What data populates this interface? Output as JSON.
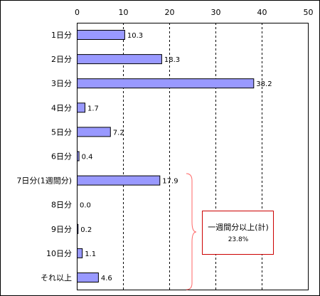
{
  "chart_data": {
    "type": "bar",
    "orientation": "horizontal",
    "categories": [
      "1日分",
      "2日分",
      "3日分",
      "4日分",
      "5日分",
      "6日分",
      "7日分(1週間分)",
      "8日分",
      "9日分",
      "10日分",
      "それ以上"
    ],
    "values": [
      10.3,
      18.3,
      38.2,
      1.7,
      7.2,
      0.4,
      17.9,
      0.0,
      0.2,
      1.1,
      4.6
    ],
    "value_labels": [
      "10.3",
      "18.3",
      "38.2",
      "1.7",
      "7.2",
      "0.4",
      "17.9",
      "0.0",
      "0.2",
      "1.1",
      "4.6"
    ],
    "xlim": [
      0,
      50
    ],
    "xticks": [
      "0",
      "10",
      "20",
      "30",
      "40",
      "50"
    ],
    "grid": true,
    "colors": {
      "bar": "#9999ff",
      "annotation_border": "#cc0000"
    },
    "annotation": {
      "label": "一週間分以上(計)",
      "value": "23.8%",
      "range_start_category": "7日分(1週間分)",
      "range_end_category": "それ以上"
    }
  }
}
